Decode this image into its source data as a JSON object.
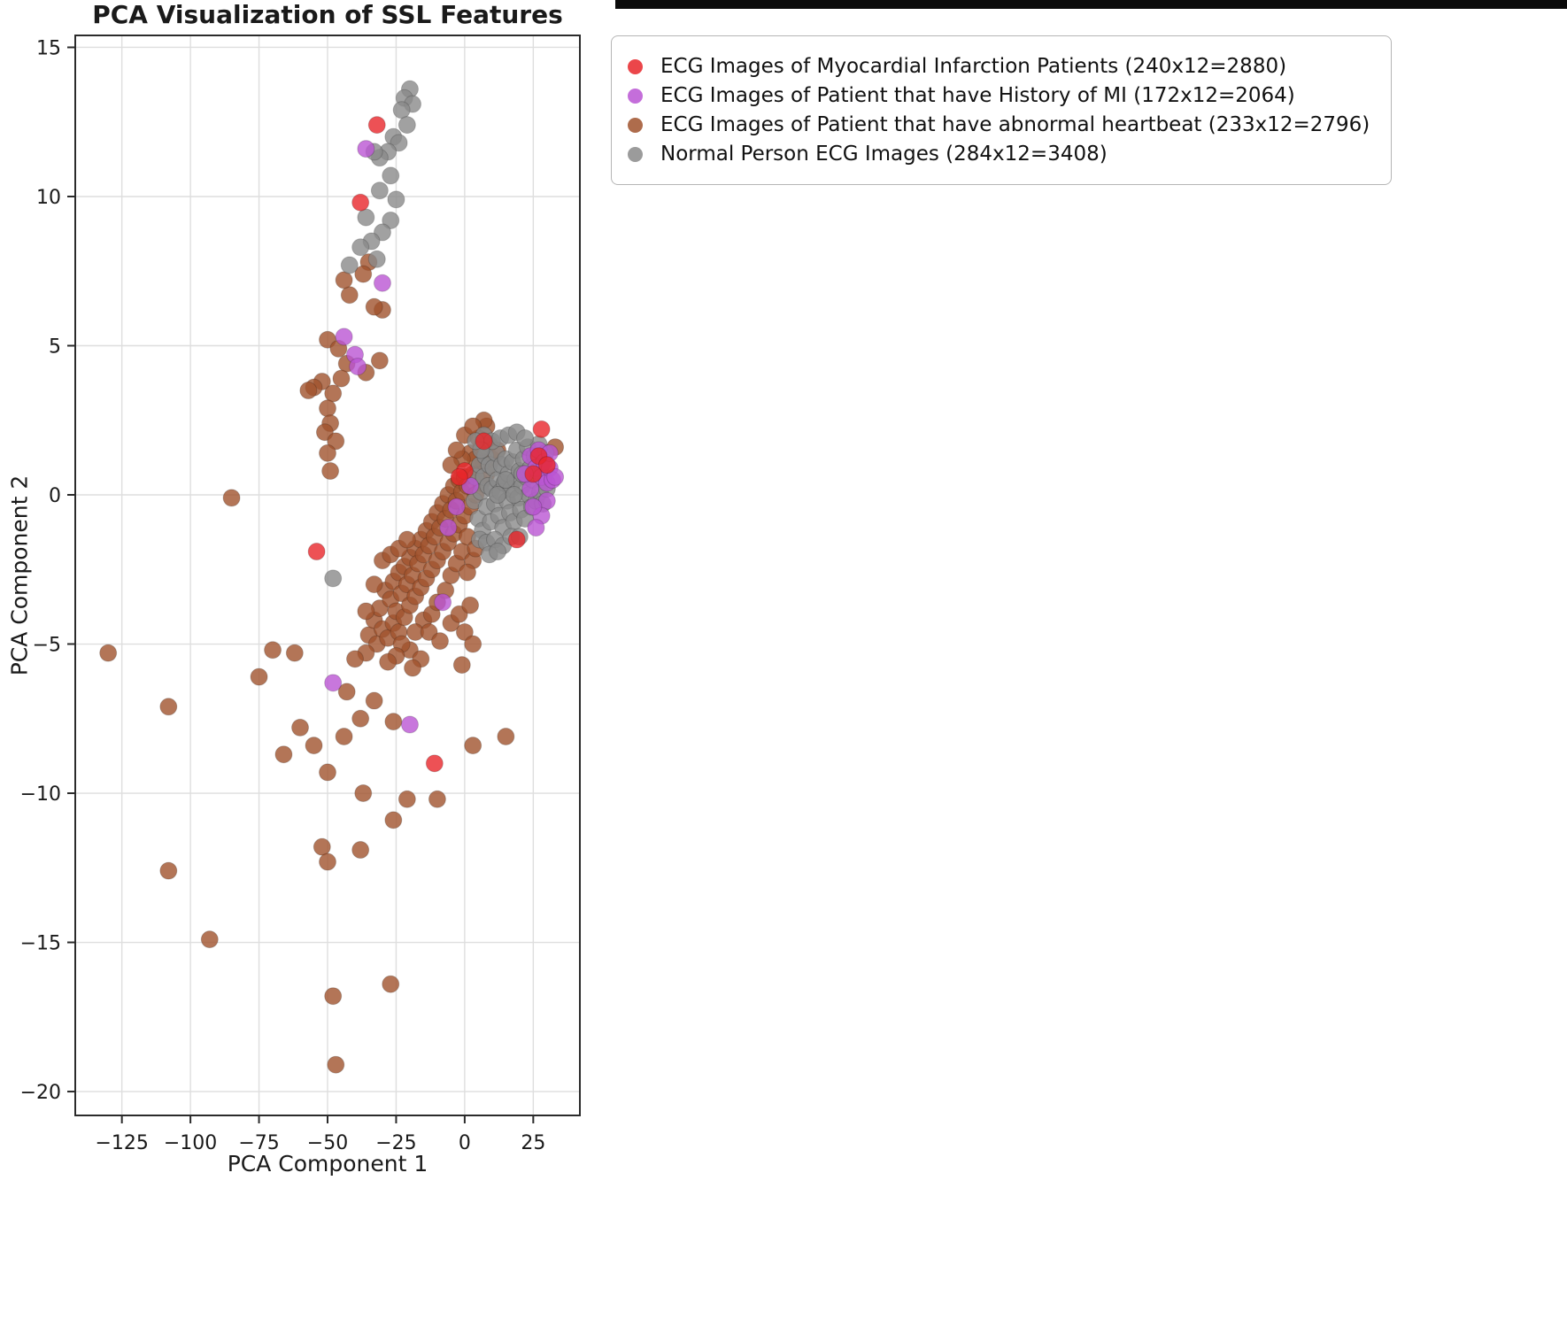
{
  "chart_data": {
    "type": "scatter",
    "title": "PCA Visualization of SSL Features",
    "xlabel": "PCA Component 1",
    "ylabel": "PCA Component 2",
    "xlim": [
      -142,
      42
    ],
    "ylim": [
      -20.8,
      15.4
    ],
    "xticks": [
      -125,
      -100,
      -75,
      -50,
      -25,
      0,
      25
    ],
    "xtick_labels": [
      "−125",
      "−100",
      "−75",
      "−50",
      "−25",
      "0",
      "25"
    ],
    "yticks": [
      -20,
      -15,
      -10,
      -5,
      0,
      5,
      10,
      15
    ],
    "ytick_labels": [
      "−20",
      "−15",
      "−10",
      "−5",
      "0",
      "5",
      "10",
      "15"
    ],
    "grid": true,
    "legend_position": "upper right, outside plot",
    "marker_opacity": 0.8,
    "draw_order": [
      2,
      3,
      1,
      0
    ],
    "series": [
      {
        "name": "mi-patients",
        "label": "ECG Images of Myocardial Infarction Patients (240x12=2880)",
        "color": "#e8262a",
        "points": [
          [
            -32,
            12.4
          ],
          [
            -38,
            9.8
          ],
          [
            -54,
            -1.9
          ],
          [
            -11,
            -9.0
          ],
          [
            19,
            -1.5
          ],
          [
            28,
            2.2
          ],
          [
            7,
            1.8
          ],
          [
            0,
            0.8
          ],
          [
            -2,
            0.6
          ],
          [
            27,
            1.3
          ],
          [
            30,
            1.0
          ],
          [
            25,
            0.7
          ]
        ]
      },
      {
        "name": "history-of-mi",
        "label": "ECG Images of Patient that have History of MI (172x12=2064)",
        "color": "#ba55d3",
        "points": [
          [
            -36,
            11.6
          ],
          [
            -30,
            7.1
          ],
          [
            -44,
            5.3
          ],
          [
            -40,
            4.7
          ],
          [
            -39,
            4.3
          ],
          [
            -48,
            -6.3
          ],
          [
            -20,
            -7.7
          ],
          [
            -8,
            -3.6
          ],
          [
            -3,
            -0.4
          ],
          [
            -6,
            -1.1
          ],
          [
            2,
            0.3
          ],
          [
            24,
            1.3
          ],
          [
            26,
            0.9
          ],
          [
            27,
            1.5
          ],
          [
            28,
            0.6
          ],
          [
            29,
            1.1
          ],
          [
            30,
            0.4
          ],
          [
            31,
            0.9
          ],
          [
            32,
            0.5
          ],
          [
            30,
            -0.2
          ],
          [
            28,
            -0.7
          ],
          [
            26,
            -1.1
          ],
          [
            24,
            0.2
          ],
          [
            22,
            0.7
          ],
          [
            25,
            -0.4
          ],
          [
            31,
            1.4
          ],
          [
            33,
            0.6
          ]
        ]
      },
      {
        "name": "abnormal-heartbeat",
        "label": "ECG Images of Patient that have abnormal heartbeat (233x12=2796)",
        "color": "#a0522d",
        "points": [
          [
            -50,
            5.2
          ],
          [
            -46,
            4.9
          ],
          [
            -43,
            4.4
          ],
          [
            -31,
            4.5
          ],
          [
            -36,
            4.1
          ],
          [
            -52,
            3.8
          ],
          [
            -55,
            3.6
          ],
          [
            -48,
            3.4
          ],
          [
            -57,
            3.5
          ],
          [
            -50,
            2.9
          ],
          [
            -49,
            2.4
          ],
          [
            -51,
            2.1
          ],
          [
            -47,
            1.8
          ],
          [
            -50,
            1.4
          ],
          [
            -49,
            0.8
          ],
          [
            -42,
            6.7
          ],
          [
            -30,
            6.2
          ],
          [
            -35,
            7.8
          ],
          [
            -44,
            7.2
          ],
          [
            -37,
            7.4
          ],
          [
            -33,
            6.3
          ],
          [
            -45,
            3.9
          ],
          [
            -35,
            -4.7
          ],
          [
            -33,
            -4.2
          ],
          [
            -32,
            -5.0
          ],
          [
            -31,
            -3.8
          ],
          [
            -30,
            -4.5
          ],
          [
            -29,
            -3.2
          ],
          [
            -28,
            -4.8
          ],
          [
            -27,
            -3.5
          ],
          [
            -26,
            -2.9
          ],
          [
            -26,
            -4.3
          ],
          [
            -25,
            -3.9
          ],
          [
            -24,
            -2.6
          ],
          [
            -24,
            -4.6
          ],
          [
            -23,
            -3.3
          ],
          [
            -22,
            -2.4
          ],
          [
            -22,
            -4.1
          ],
          [
            -21,
            -3.0
          ],
          [
            -20,
            -2.1
          ],
          [
            -20,
            -3.7
          ],
          [
            -19,
            -2.7
          ],
          [
            -18,
            -1.8
          ],
          [
            -18,
            -3.4
          ],
          [
            -17,
            -2.3
          ],
          [
            -16,
            -1.5
          ],
          [
            -16,
            -3.1
          ],
          [
            -15,
            -2.0
          ],
          [
            -14,
            -1.2
          ],
          [
            -14,
            -2.8
          ],
          [
            -13,
            -1.7
          ],
          [
            -12,
            -0.9
          ],
          [
            -12,
            -2.5
          ],
          [
            -11,
            -1.4
          ],
          [
            -10,
            -0.6
          ],
          [
            -10,
            -2.2
          ],
          [
            -9,
            -1.1
          ],
          [
            -8,
            -0.3
          ],
          [
            -8,
            -1.9
          ],
          [
            -7,
            -0.8
          ],
          [
            -6,
            0.0
          ],
          [
            -6,
            -1.6
          ],
          [
            -5,
            -0.5
          ],
          [
            -4,
            0.3
          ],
          [
            -4,
            -1.3
          ],
          [
            -3,
            -0.2
          ],
          [
            -2,
            0.5
          ],
          [
            -2,
            -1.0
          ],
          [
            -1,
            0.1
          ],
          [
            0,
            0.6
          ],
          [
            0,
            -0.7
          ],
          [
            1,
            0.3
          ],
          [
            2,
            -0.4
          ],
          [
            3,
            0.7
          ],
          [
            4,
            0.0
          ],
          [
            5,
            0.9
          ],
          [
            6,
            0.4
          ],
          [
            7,
            1.1
          ],
          [
            8,
            0.7
          ],
          [
            10,
            1.2
          ],
          [
            -30,
            -2.2
          ],
          [
            -27,
            -2.0
          ],
          [
            -24,
            -1.8
          ],
          [
            -21,
            -1.5
          ],
          [
            -33,
            -3.0
          ],
          [
            -15,
            -4.2
          ],
          [
            -12,
            -4.0
          ],
          [
            -10,
            -3.6
          ],
          [
            -7,
            -3.2
          ],
          [
            -5,
            -2.7
          ],
          [
            -3,
            -2.3
          ],
          [
            -18,
            -4.6
          ],
          [
            -20,
            -5.2
          ],
          [
            -23,
            -5.0
          ],
          [
            -1,
            -1.9
          ],
          [
            1,
            -1.4
          ],
          [
            3,
            -2.2
          ],
          [
            -36,
            -3.9
          ],
          [
            -13,
            -4.6
          ],
          [
            -9,
            -4.9
          ],
          [
            -5,
            -4.3
          ],
          [
            -2,
            -4.0
          ],
          [
            -1,
            -5.7
          ],
          [
            2,
            -3.7
          ],
          [
            1,
            -2.6
          ],
          [
            4,
            -1.8
          ],
          [
            -16,
            -5.5
          ],
          [
            -19,
            -5.8
          ],
          [
            -25,
            -5.4
          ],
          [
            -28,
            -5.6
          ],
          [
            -36,
            -5.3
          ],
          [
            -40,
            -5.5
          ],
          [
            0,
            -4.6
          ],
          [
            3,
            -5.0
          ],
          [
            -130,
            -5.3
          ],
          [
            -108,
            -7.1
          ],
          [
            -108,
            -12.6
          ],
          [
            -93,
            -14.9
          ],
          [
            -85,
            -0.1
          ],
          [
            -75,
            -6.1
          ],
          [
            -70,
            -5.2
          ],
          [
            -62,
            -5.3
          ],
          [
            -66,
            -8.7
          ],
          [
            -60,
            -7.8
          ],
          [
            -55,
            -8.4
          ],
          [
            -44,
            -8.1
          ],
          [
            -50,
            -9.3
          ],
          [
            -47,
            -19.1
          ],
          [
            -27,
            -16.4
          ],
          [
            -48,
            -16.8
          ],
          [
            -52,
            -11.8
          ],
          [
            -50,
            -12.3
          ],
          [
            -38,
            -11.9
          ],
          [
            -37,
            -10.0
          ],
          [
            -26,
            -10.9
          ],
          [
            -21,
            -10.2
          ],
          [
            -10,
            -10.2
          ],
          [
            3,
            -8.4
          ],
          [
            15,
            -8.1
          ],
          [
            -26,
            -7.6
          ],
          [
            -33,
            -6.9
          ],
          [
            -43,
            -6.6
          ],
          [
            -38,
            -7.5
          ],
          [
            2,
            1.4
          ],
          [
            4,
            1.2
          ],
          [
            6,
            1.6
          ],
          [
            8,
            2.3
          ],
          [
            -1,
            1.2
          ],
          [
            0,
            2.0
          ],
          [
            7,
            2.5
          ],
          [
            5,
            1.9
          ],
          [
            9,
            1.7
          ],
          [
            3,
            2.3
          ],
          [
            -3,
            1.5
          ],
          [
            -5,
            1.0
          ],
          [
            12,
            1.5
          ],
          [
            33,
            1.6
          ]
        ]
      },
      {
        "name": "normal",
        "label": "Normal Person ECG Images (284x12=3408)",
        "color": "#8a8a8a",
        "points": [
          [
            -20,
            13.6
          ],
          [
            -22,
            13.3
          ],
          [
            -19,
            13.1
          ],
          [
            -23,
            12.9
          ],
          [
            -21,
            12.4
          ],
          [
            -26,
            12.0
          ],
          [
            -24,
            11.8
          ],
          [
            -28,
            11.5
          ],
          [
            -31,
            11.3
          ],
          [
            -33,
            11.5
          ],
          [
            -27,
            10.7
          ],
          [
            -31,
            10.2
          ],
          [
            -25,
            9.9
          ],
          [
            -36,
            9.3
          ],
          [
            -27,
            9.2
          ],
          [
            -30,
            8.8
          ],
          [
            -34,
            8.5
          ],
          [
            -38,
            8.3
          ],
          [
            -42,
            7.7
          ],
          [
            -32,
            7.9
          ],
          [
            -48,
            -2.8
          ],
          [
            3.5,
            -0.2
          ],
          [
            4,
            0.6
          ],
          [
            5,
            -0.8
          ],
          [
            5.5,
            1.0
          ],
          [
            6,
            0.1
          ],
          [
            6.5,
            -1.2
          ],
          [
            7,
            0.6
          ],
          [
            7.5,
            1.3
          ],
          [
            8,
            -0.4
          ],
          [
            8.5,
            0.3
          ],
          [
            9,
            1.0
          ],
          [
            9.5,
            -0.9
          ],
          [
            10,
            0.2
          ],
          [
            10.5,
            0.9
          ],
          [
            11,
            -0.3
          ],
          [
            11.5,
            1.4
          ],
          [
            12,
            0.5
          ],
          [
            12.5,
            -0.7
          ],
          [
            13,
            0.1
          ],
          [
            13.5,
            1.0
          ],
          [
            14,
            -1.1
          ],
          [
            14.5,
            0.4
          ],
          [
            15,
            1.2
          ],
          [
            15.5,
            -0.2
          ],
          [
            16,
            0.7
          ],
          [
            16.5,
            -0.6
          ],
          [
            17,
            0.2
          ],
          [
            17.5,
            1.1
          ],
          [
            18,
            -0.9
          ],
          [
            18.5,
            0.5
          ],
          [
            19,
            1.5
          ],
          [
            19.5,
            -0.1
          ],
          [
            20,
            0.8
          ],
          [
            20.5,
            -0.5
          ],
          [
            21,
            0.3
          ],
          [
            21.5,
            1.2
          ],
          [
            22,
            -0.8
          ],
          [
            22.5,
            0.6
          ],
          [
            23,
            1.6
          ],
          [
            23.5,
            0.0
          ],
          [
            24,
            0.9
          ],
          [
            24.5,
            -0.4
          ],
          [
            25,
            0.5
          ],
          [
            25.5,
            1.3
          ],
          [
            26,
            -0.2
          ],
          [
            26.5,
            0.8
          ],
          [
            27,
            1.7
          ],
          [
            27.5,
            0.1
          ],
          [
            28,
            1.0
          ],
          [
            28.5,
            -0.3
          ],
          [
            29,
            0.6
          ],
          [
            29.5,
            1.4
          ],
          [
            30,
            0.2
          ],
          [
            5.5,
            -1.5
          ],
          [
            8,
            -1.6
          ],
          [
            11,
            -1.5
          ],
          [
            14,
            -1.7
          ],
          [
            17,
            -1.4
          ],
          [
            20,
            -1.4
          ],
          [
            9,
            -2.0
          ],
          [
            12,
            -1.9
          ],
          [
            7,
            2.0
          ],
          [
            10,
            1.8
          ],
          [
            13,
            1.9
          ],
          [
            16,
            2.0
          ],
          [
            19,
            2.1
          ],
          [
            22,
            1.9
          ],
          [
            12,
            0.0
          ],
          [
            15,
            0.5
          ],
          [
            18,
            0.0
          ],
          [
            21,
            0.7
          ],
          [
            6,
            1.5
          ],
          [
            4,
            1.8
          ]
        ]
      }
    ]
  }
}
